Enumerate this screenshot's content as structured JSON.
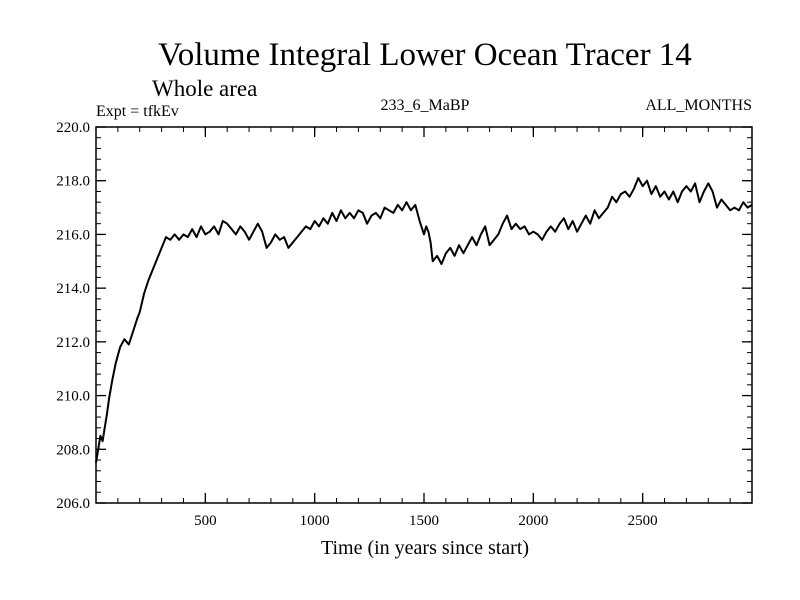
{
  "chart_data": {
    "type": "line",
    "title": "Volume Integral Lower Ocean Tracer 14",
    "subtitle": "Whole area",
    "annotations": {
      "left": "Expt = tfkEv",
      "center": "233_6_MaBP",
      "right": "ALL_MONTHS"
    },
    "xlabel": "Time (in years since start)",
    "ylabel": "",
    "xlim": [
      0,
      3000
    ],
    "ylim": [
      206.0,
      220.0
    ],
    "x_ticks": [
      500,
      1000,
      1500,
      2000,
      2500
    ],
    "x_tick_labels": [
      "500",
      "1000",
      "1500",
      "2000",
      "2500"
    ],
    "x_minor_step": 100,
    "y_ticks": [
      206.0,
      208.0,
      210.0,
      212.0,
      214.0,
      216.0,
      218.0,
      220.0
    ],
    "y_tick_labels": [
      "206.0",
      "208.0",
      "210.0",
      "212.0",
      "214.0",
      "216.0",
      "218.0",
      "220.0"
    ],
    "y_minor_step": 0.4,
    "grid": false,
    "series": [
      {
        "color": "#000000",
        "x": [
          0,
          10,
          20,
          30,
          40,
          50,
          60,
          75,
          90,
          110,
          130,
          150,
          170,
          190,
          200,
          220,
          240,
          260,
          280,
          300,
          320,
          340,
          360,
          380,
          400,
          420,
          440,
          460,
          480,
          500,
          520,
          540,
          560,
          580,
          600,
          620,
          640,
          660,
          680,
          700,
          720,
          740,
          760,
          780,
          800,
          820,
          840,
          860,
          880,
          900,
          920,
          940,
          960,
          980,
          1000,
          1020,
          1040,
          1060,
          1080,
          1100,
          1120,
          1140,
          1160,
          1180,
          1200,
          1220,
          1240,
          1260,
          1280,
          1300,
          1320,
          1340,
          1360,
          1380,
          1400,
          1420,
          1440,
          1460,
          1480,
          1500,
          1510,
          1520,
          1530,
          1540,
          1560,
          1580,
          1600,
          1620,
          1640,
          1660,
          1680,
          1700,
          1720,
          1740,
          1760,
          1780,
          1800,
          1820,
          1840,
          1860,
          1880,
          1900,
          1920,
          1940,
          1960,
          1980,
          2000,
          2020,
          2040,
          2060,
          2080,
          2100,
          2120,
          2140,
          2160,
          2180,
          2200,
          2220,
          2240,
          2260,
          2280,
          2300,
          2320,
          2340,
          2360,
          2380,
          2400,
          2420,
          2440,
          2460,
          2480,
          2500,
          2520,
          2540,
          2560,
          2580,
          2600,
          2620,
          2640,
          2660,
          2680,
          2700,
          2720,
          2740,
          2760,
          2780,
          2800,
          2820,
          2840,
          2860,
          2880,
          2900,
          2920,
          2940,
          2960,
          2980,
          3000
        ],
        "y": [
          207.5,
          208.0,
          208.5,
          208.3,
          208.8,
          209.3,
          209.9,
          210.6,
          211.2,
          211.8,
          212.1,
          211.9,
          212.4,
          212.9,
          213.1,
          213.8,
          214.3,
          214.7,
          215.1,
          215.5,
          215.9,
          215.8,
          216.0,
          215.8,
          216.0,
          215.9,
          216.2,
          215.9,
          216.3,
          216.0,
          216.1,
          216.3,
          216.0,
          216.5,
          216.4,
          216.2,
          216.0,
          216.3,
          216.1,
          215.8,
          216.1,
          216.4,
          216.1,
          215.5,
          215.7,
          216.0,
          215.8,
          215.9,
          215.5,
          215.7,
          215.9,
          216.1,
          216.3,
          216.2,
          216.5,
          216.3,
          216.6,
          216.4,
          216.8,
          216.5,
          216.9,
          216.6,
          216.8,
          216.6,
          216.9,
          216.8,
          216.4,
          216.7,
          216.8,
          216.6,
          217.0,
          216.9,
          216.8,
          217.1,
          216.9,
          217.2,
          216.9,
          217.1,
          216.5,
          216.0,
          216.3,
          216.1,
          215.7,
          215.0,
          215.2,
          214.9,
          215.3,
          215.5,
          215.2,
          215.6,
          215.3,
          215.6,
          215.9,
          215.6,
          216.0,
          216.3,
          215.6,
          215.8,
          216.0,
          216.4,
          216.7,
          216.2,
          216.4,
          216.2,
          216.3,
          216.0,
          216.1,
          216.0,
          215.8,
          216.1,
          216.3,
          216.1,
          216.4,
          216.6,
          216.2,
          216.5,
          216.1,
          216.4,
          216.7,
          216.4,
          216.9,
          216.6,
          216.8,
          217.0,
          217.4,
          217.2,
          217.5,
          217.6,
          217.4,
          217.7,
          218.1,
          217.8,
          218.0,
          217.5,
          217.8,
          217.4,
          217.6,
          217.3,
          217.6,
          217.2,
          217.6,
          217.8,
          217.6,
          217.9,
          217.2,
          217.6,
          217.9,
          217.6,
          217.0,
          217.3,
          217.1,
          216.9,
          217.0,
          216.9,
          217.2,
          217.0,
          217.1
        ]
      }
    ]
  }
}
